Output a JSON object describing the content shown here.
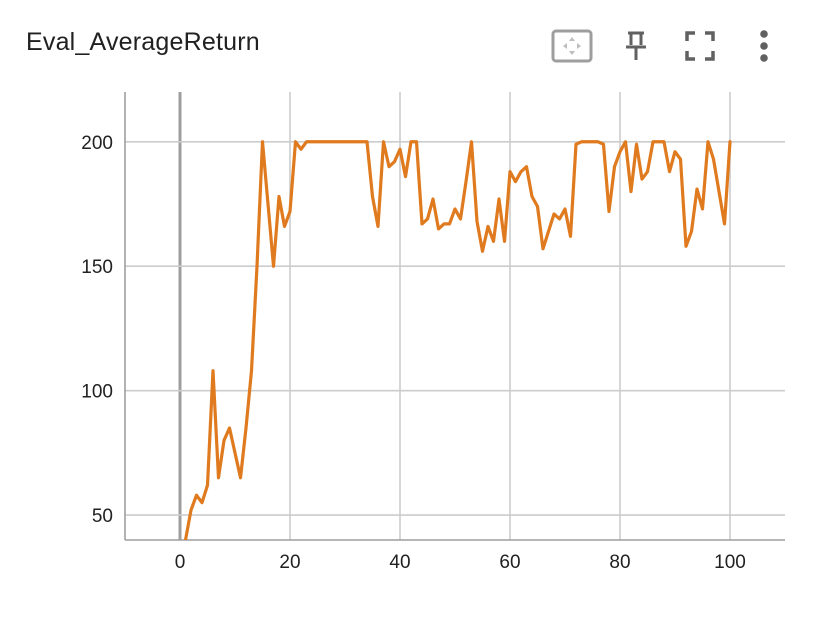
{
  "card": {
    "title": "Eval_AverageReturn",
    "toolbar": {
      "fit_domain_icon": "fit-domain-icon",
      "pin_icon": "pin-icon",
      "fullscreen_icon": "fullscreen-icon",
      "more_icon": "more-vert-icon"
    }
  },
  "colors": {
    "series": "#e07a1f",
    "grid": "#cccccc",
    "axis": "#9e9e9e",
    "text": "#212121",
    "icon": "#616161"
  },
  "chart_data": {
    "type": "line",
    "title": "Eval_AverageReturn",
    "xlabel": "",
    "ylabel": "",
    "xlim": [
      -10,
      110
    ],
    "ylim": [
      40,
      220
    ],
    "xticks": [
      0,
      20,
      40,
      60,
      80,
      100
    ],
    "xtick_labels": [
      "0",
      "20",
      "40",
      "60",
      "80",
      "100"
    ],
    "yticks": [
      50,
      100,
      150,
      200
    ],
    "ytick_labels": [
      "50",
      "100",
      "150",
      "200"
    ],
    "grid": true,
    "series": [
      {
        "color": "#e07a1f",
        "x": [
          1,
          2,
          3,
          4,
          5,
          6,
          7,
          8,
          9,
          10,
          11,
          12,
          13,
          14,
          15,
          16,
          17,
          18,
          19,
          20,
          21,
          22,
          23,
          24,
          25,
          26,
          27,
          28,
          29,
          30,
          31,
          32,
          33,
          34,
          35,
          36,
          37,
          38,
          39,
          40,
          41,
          42,
          43,
          44,
          45,
          46,
          47,
          48,
          49,
          50,
          51,
          52,
          53,
          54,
          55,
          56,
          57,
          58,
          59,
          60,
          61,
          62,
          63,
          64,
          65,
          66,
          67,
          68,
          69,
          70,
          71,
          72,
          73,
          74,
          75,
          76,
          77,
          78,
          79,
          80,
          81,
          82,
          83,
          84,
          85,
          86,
          87,
          88,
          89,
          90,
          91,
          92,
          93,
          94,
          95,
          96,
          97,
          98,
          99,
          100
        ],
        "y": [
          40,
          52,
          58,
          55,
          62,
          108,
          65,
          80,
          85,
          75,
          65,
          85,
          108,
          150,
          200,
          175,
          150,
          178,
          166,
          172,
          200,
          197,
          200,
          200,
          200,
          200,
          200,
          200,
          200,
          200,
          200,
          200,
          200,
          200,
          178,
          166,
          200,
          190,
          192,
          197,
          186,
          200,
          200,
          167,
          169,
          177,
          165,
          167,
          167,
          173,
          169,
          184,
          200,
          168,
          156,
          166,
          160,
          177,
          160,
          188,
          184,
          188,
          190,
          178,
          174,
          157,
          164,
          171,
          169,
          173,
          162,
          199,
          200,
          200,
          200,
          200,
          199,
          172,
          190,
          196,
          200,
          180,
          199,
          185,
          188,
          200,
          200,
          200,
          188,
          196,
          193,
          158,
          164,
          181,
          173,
          200,
          193,
          180,
          167,
          200
        ]
      }
    ]
  }
}
